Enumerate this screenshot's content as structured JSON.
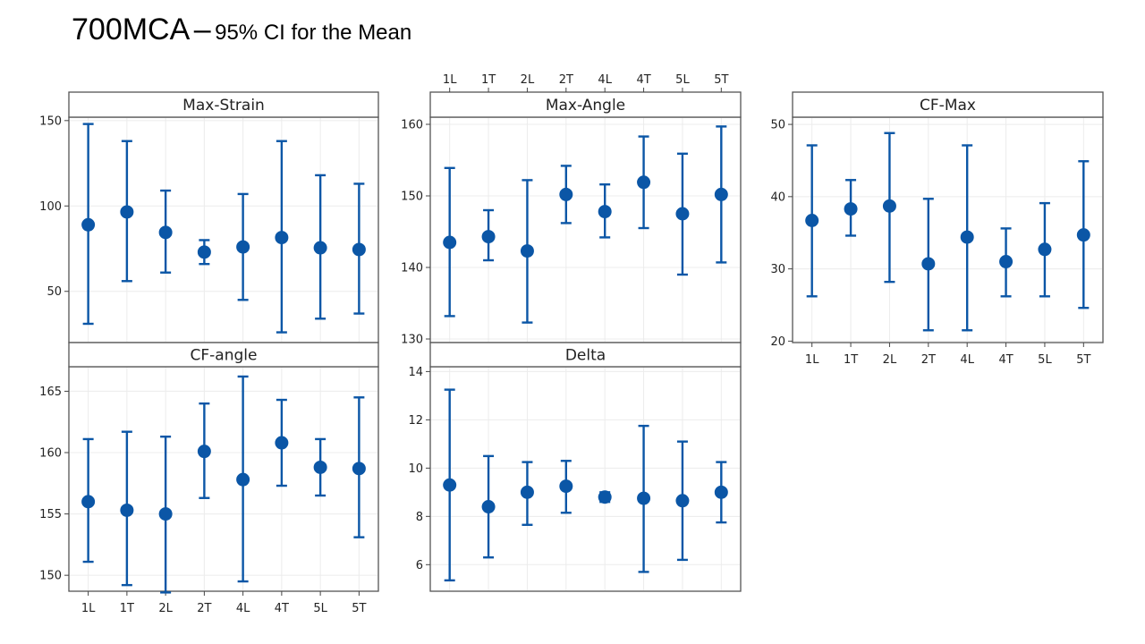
{
  "title": {
    "main": "700MCA",
    "dash": "–",
    "sub": "95% CI for the Mean"
  },
  "colors": {
    "ci": "#0b56a6",
    "frame": "#555555",
    "grid": "#ececec"
  },
  "chart_data": {
    "type": "interval",
    "categories": [
      "1L",
      "1T",
      "2L",
      "2T",
      "4L",
      "4T",
      "5L",
      "5T"
    ],
    "panels": [
      {
        "name": "Max-Strain",
        "ylim": [
          20,
          152
        ],
        "yticks": [
          50,
          100,
          150
        ],
        "mean": [
          89,
          96.5,
          84.5,
          73,
          76,
          81.5,
          75.5,
          74.5
        ],
        "lower": [
          31,
          56,
          61,
          66,
          45,
          26,
          34,
          37
        ],
        "upper": [
          148,
          138,
          109,
          80,
          107,
          138,
          118,
          113
        ]
      },
      {
        "name": "Max-Angle",
        "ylim": [
          129.5,
          161
        ],
        "yticks": [
          130,
          140,
          150,
          160
        ],
        "mean": [
          143.5,
          144.3,
          142.3,
          150.2,
          147.8,
          151.9,
          147.5,
          150.2
        ],
        "lower": [
          133.2,
          141,
          132.3,
          146.2,
          144.2,
          145.5,
          139,
          140.7
        ],
        "upper": [
          153.9,
          148,
          152.2,
          154.2,
          151.6,
          158.3,
          155.9,
          159.7
        ]
      },
      {
        "name": "CF-Max",
        "ylim": [
          19.8,
          51
        ],
        "yticks": [
          20,
          30,
          40,
          50
        ],
        "mean": [
          36.7,
          38.3,
          38.7,
          30.7,
          34.4,
          31,
          32.7,
          34.7
        ],
        "lower": [
          26.2,
          34.6,
          28.2,
          21.5,
          21.5,
          26.2,
          26.2,
          24.6
        ],
        "upper": [
          47.1,
          42.3,
          48.8,
          39.7,
          47.1,
          35.6,
          39.1,
          44.9
        ]
      },
      {
        "name": "CF-angle",
        "ylim": [
          148.7,
          167
        ],
        "yticks": [
          150,
          155,
          160,
          165
        ],
        "mean": [
          156,
          155.3,
          155,
          160.1,
          157.8,
          160.8,
          158.8,
          158.7
        ],
        "lower": [
          151.1,
          149.2,
          148.6,
          156.3,
          149.5,
          157.3,
          156.5,
          153.1
        ],
        "upper": [
          161.1,
          161.7,
          161.3,
          164,
          166.2,
          164.3,
          161.1,
          164.5
        ]
      },
      {
        "name": "Delta",
        "ylim": [
          4.9,
          14.2
        ],
        "yticks": [
          6,
          8,
          10,
          12,
          14
        ],
        "mean": [
          9.3,
          8.4,
          9,
          9.25,
          8.8,
          8.75,
          8.65,
          9
        ],
        "lower": [
          5.35,
          6.3,
          7.65,
          8.15,
          8.6,
          5.7,
          6.2,
          7.75
        ],
        "upper": [
          13.25,
          10.5,
          10.25,
          10.3,
          9.0,
          11.75,
          11.1,
          10.25
        ]
      }
    ]
  }
}
